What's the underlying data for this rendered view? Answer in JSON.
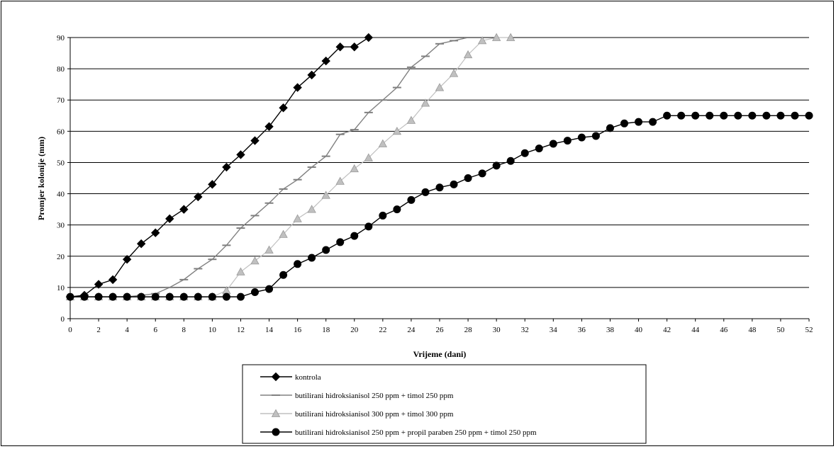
{
  "chart_data": {
    "type": "line",
    "title": "",
    "xlabel": "Vrijeme (dani)",
    "ylabel": "Promjer kolonije (mm)",
    "xlim": [
      0,
      52
    ],
    "ylim": [
      0,
      90
    ],
    "x_ticks": [
      0,
      2,
      4,
      6,
      8,
      10,
      12,
      14,
      16,
      18,
      20,
      22,
      24,
      26,
      28,
      30,
      32,
      34,
      36,
      38,
      40,
      42,
      44,
      46,
      48,
      50,
      52
    ],
    "y_ticks": [
      0,
      10,
      20,
      30,
      40,
      50,
      60,
      70,
      80,
      90
    ],
    "grid": "horizontal",
    "legend_position": "bottom",
    "series": [
      {
        "name": "kontrola",
        "color": "#000000",
        "marker": "diamond",
        "x": [
          0,
          1,
          2,
          3,
          4,
          5,
          6,
          7,
          8,
          9,
          10,
          11,
          12,
          13,
          14,
          15,
          16,
          17,
          18,
          19,
          20,
          21
        ],
        "y": [
          7,
          7.5,
          11,
          12.5,
          19,
          24,
          27.5,
          32,
          35,
          39,
          43,
          48.5,
          52.5,
          57,
          61.5,
          67.5,
          74,
          78,
          82.5,
          87,
          87,
          90
        ]
      },
      {
        "name": "butilirani hidroksianisol 250 ppm + timol 250 ppm",
        "color": "#808080",
        "marker": "dash",
        "x": [
          0,
          1,
          2,
          3,
          4,
          5,
          6,
          7,
          8,
          9,
          10,
          11,
          12,
          13,
          14,
          15,
          16,
          17,
          18,
          19,
          20,
          21,
          22,
          23,
          24,
          25,
          26,
          27,
          28
        ],
        "y": [
          7,
          7,
          7,
          7,
          7,
          7.5,
          8,
          10,
          12.5,
          16,
          19,
          23.5,
          29,
          33,
          37,
          41.5,
          44.5,
          48.5,
          52,
          59,
          60.5,
          66,
          70,
          74,
          80.5,
          84,
          88,
          89,
          90
        ]
      },
      {
        "name": "butilirani hidroksianisol 300 ppm + timol 300 ppm",
        "color": "#c0c0c0",
        "marker": "triangle",
        "x": [
          0,
          1,
          2,
          3,
          4,
          5,
          6,
          7,
          8,
          9,
          10,
          11,
          12,
          13,
          14,
          15,
          16,
          17,
          18,
          19,
          20,
          21,
          22,
          23,
          24,
          25,
          26,
          27,
          28,
          29,
          30,
          31
        ],
        "y": [
          7,
          7,
          7,
          7,
          7,
          7,
          7,
          7,
          7,
          7,
          7,
          9,
          15,
          18.5,
          22,
          27,
          32,
          35,
          39.5,
          44,
          48,
          51.5,
          56,
          60,
          63.5,
          69,
          74,
          78.5,
          84.5,
          89,
          90,
          90
        ]
      },
      {
        "name": "butilirani hidroksianisol 250 ppm + propil paraben 250 ppm + timol 250 ppm",
        "color": "#000000",
        "marker": "circle",
        "x": [
          0,
          1,
          2,
          3,
          4,
          5,
          6,
          7,
          8,
          9,
          10,
          11,
          12,
          13,
          14,
          15,
          16,
          17,
          18,
          19,
          20,
          21,
          22,
          23,
          24,
          25,
          26,
          27,
          28,
          29,
          30,
          31,
          32,
          33,
          34,
          35,
          36,
          37,
          38,
          39,
          40,
          41,
          42,
          43,
          44,
          45,
          46,
          47,
          48,
          49,
          50,
          51,
          52
        ],
        "y": [
          7,
          7,
          7,
          7,
          7,
          7,
          7,
          7,
          7,
          7,
          7,
          7,
          7,
          8.5,
          9.5,
          14,
          17.5,
          19.5,
          22,
          24.5,
          26.5,
          29.5,
          33,
          35,
          38,
          40.5,
          42,
          43,
          45,
          46.5,
          49,
          50.5,
          53,
          54.5,
          56,
          57,
          58,
          58.5,
          61,
          62.5,
          63,
          63,
          65,
          65,
          65,
          65,
          65,
          65,
          65,
          65,
          65,
          65,
          65
        ]
      }
    ]
  }
}
